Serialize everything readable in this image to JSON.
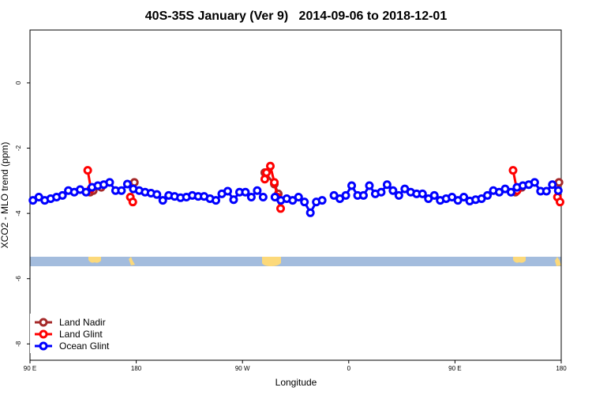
{
  "chart_data": {
    "type": "line",
    "title": "40S-35S January (Ver 9)   2014-09-06 to 2018-12-01",
    "x_label": "Longitude",
    "y_label": "XCO2 - MLO trend (ppm)",
    "xlim": [
      90,
      540
    ],
    "xticks": [
      {
        "value": 90,
        "label": "90 E"
      },
      {
        "value": 180,
        "label": "180"
      },
      {
        "value": 270,
        "label": "90 W"
      },
      {
        "value": 360,
        "label": "0"
      },
      {
        "value": 450,
        "label": "90 E"
      },
      {
        "value": 540,
        "label": "180"
      }
    ],
    "ylim": [
      -8.5,
      1.62
    ],
    "yticks": [
      0,
      -2,
      -4,
      -6,
      -8
    ],
    "legend": "bottom-left",
    "series": [
      {
        "name": "Land Nadir",
        "color": "#a52a2a",
        "x": [
          140.9,
          143.6,
          150.3,
          null,
          178.4,
          null,
          288.9,
          297.0,
          300.3,
          null,
          501.2,
          506.6,
          null,
          538.1
        ],
        "values": [
          -3.35,
          -3.3,
          -3.2,
          null,
          -3.05,
          null,
          -2.75,
          -3.1,
          -3.4,
          null,
          -3.35,
          -3.2,
          null,
          -3.05
        ]
      },
      {
        "name": "Land Glint",
        "color": "#ff0000",
        "x": [
          138.9,
          141.6,
          null,
          175.0,
          177.1,
          null,
          288.9,
          290.3,
          293.6,
          297.0,
          299.6,
          302.3,
          null,
          499.2,
          502.6,
          null,
          536.8,
          539.0
        ],
        "values": [
          -2.68,
          -3.25,
          null,
          -3.5,
          -3.65,
          null,
          -2.95,
          -2.75,
          -2.55,
          -3.05,
          -3.5,
          -3.85,
          null,
          -2.68,
          -3.3,
          null,
          -3.5,
          -3.65
        ]
      },
      {
        "name": "Ocean Glint",
        "color": "#0000ff",
        "x": [
          92.5,
          97.5,
          102.5,
          107.5,
          112.5,
          117.5,
          122.5,
          127.5,
          132.5,
          137.5,
          142.5,
          147.5,
          152.5,
          157.5,
          162.5,
          167.5,
          172.5,
          177.5,
          182.5,
          187.5,
          192.5,
          197.5,
          202.5,
          207.5,
          212.5,
          217.5,
          222.5,
          227.5,
          232.5,
          237.5,
          242.5,
          247.5,
          252.5,
          257.5,
          262.5,
          267.5,
          272.5,
          277.5,
          282.5,
          287.5,
          292.5,
          297.5,
          302.5,
          307.5,
          312.5,
          317.5,
          322.5,
          327.5,
          332.5,
          337.5,
          342.5,
          347.5,
          352.5,
          357.5,
          362.5,
          367.5,
          372.5,
          377.5,
          382.5,
          387.5,
          392.5,
          397.5,
          402.5,
          407.5,
          412.5,
          417.5,
          422.5,
          427.5,
          432.5,
          437.5,
          442.5,
          447.5,
          452.5,
          457.5,
          462.5,
          467.5,
          472.5,
          477.5,
          482.5,
          487.5,
          492.5,
          497.5,
          502.5,
          507.5,
          512.5,
          517.5,
          522.5,
          527.5,
          532.5,
          537.5
        ],
        "values": [
          -3.6,
          -3.5,
          -3.6,
          -3.55,
          -3.5,
          -3.45,
          -3.3,
          -3.35,
          -3.27,
          -3.35,
          -3.2,
          -3.15,
          -3.12,
          -3.05,
          -3.3,
          -3.3,
          -3.1,
          -3.25,
          -3.3,
          -3.35,
          -3.38,
          -3.42,
          -3.6,
          -3.45,
          -3.48,
          -3.52,
          -3.5,
          -3.45,
          -3.48,
          -3.48,
          -3.55,
          -3.6,
          -3.4,
          -3.32,
          -3.58,
          -3.35,
          -3.35,
          -3.5,
          -3.3,
          -3.5,
          null,
          -3.5,
          -3.6,
          -3.55,
          -3.6,
          -3.5,
          -3.65,
          -3.98,
          -3.65,
          -3.6,
          null,
          -3.45,
          -3.55,
          -3.45,
          -3.15,
          -3.45,
          -3.45,
          -3.15,
          -3.4,
          -3.35,
          -3.12,
          -3.3,
          -3.45,
          -3.25,
          -3.35,
          -3.4,
          -3.4,
          -3.55,
          -3.45,
          -3.6,
          -3.55,
          -3.5,
          -3.6,
          -3.5,
          -3.62,
          -3.58,
          -3.55,
          -3.45,
          -3.3,
          -3.35,
          -3.25,
          -3.35,
          -3.2,
          -3.15,
          -3.12,
          -3.05,
          -3.32,
          -3.32,
          -3.12,
          -3.3
        ]
      }
    ]
  }
}
